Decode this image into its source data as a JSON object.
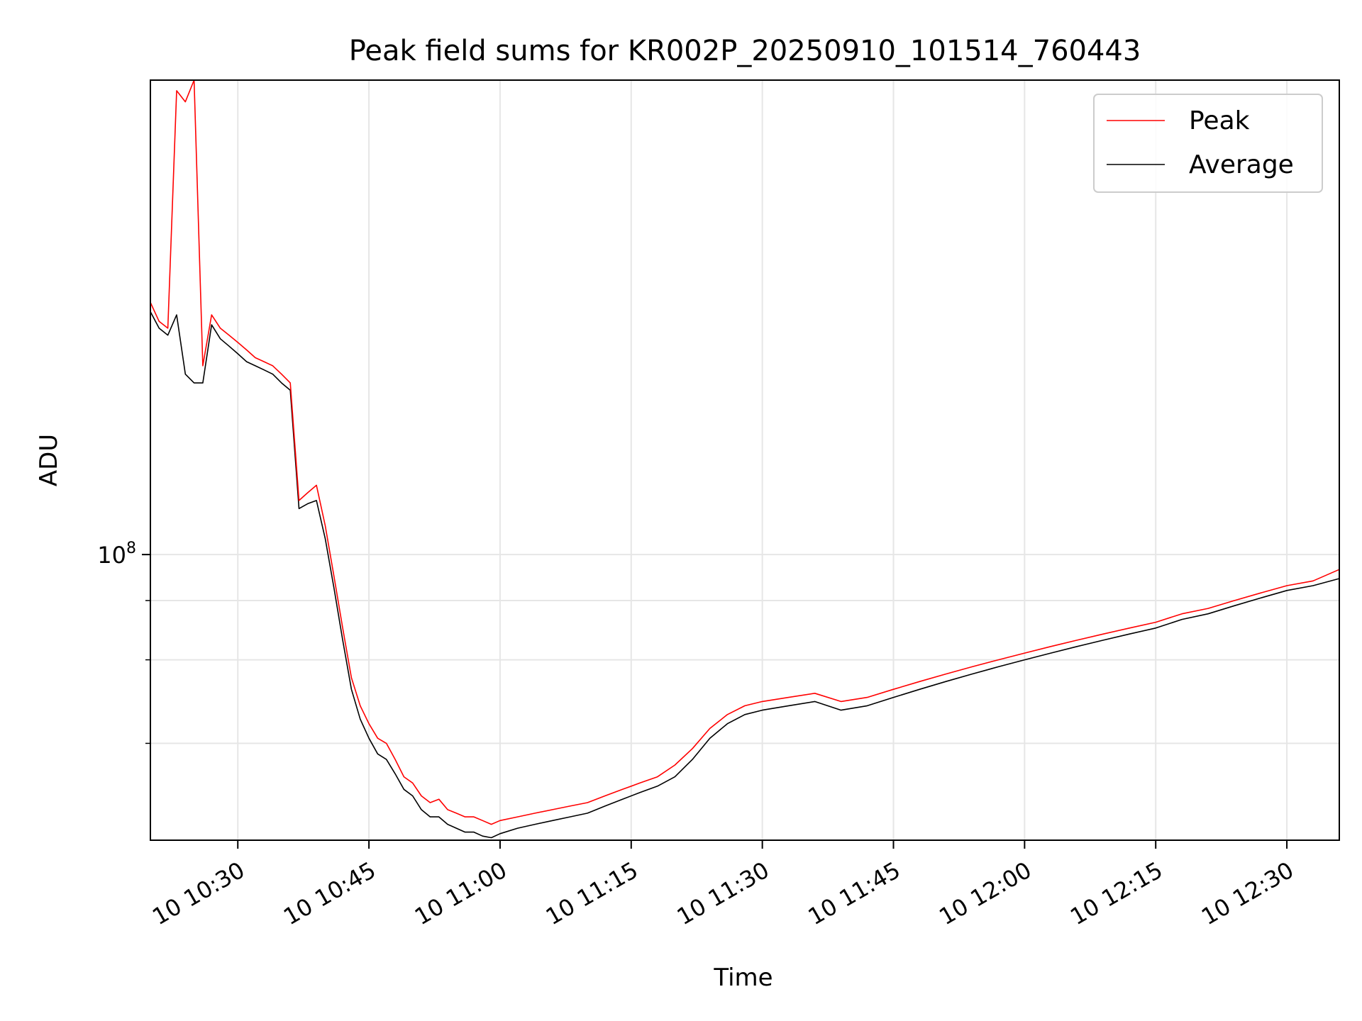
{
  "chart_data": {
    "type": "line",
    "title": "Peak field sums for KR002P_20250910_101514_760443",
    "xlabel": "Time",
    "ylabel": "ADU",
    "xlim": [
      "10:20:00",
      "12:36:00"
    ],
    "y_scale": "log",
    "ylim": [
      25000000,
      1000000000
    ],
    "grid": true,
    "legend": "upper right",
    "x_tick_labels": [
      "10 10:30",
      "10 10:45",
      "10 11:00",
      "10 11:15",
      "10 11:30",
      "10 11:45",
      "10 12:00",
      "10 12:15",
      "10 12:30"
    ],
    "x_ticks": [
      "10:30",
      "10:45",
      "11:00",
      "11:15",
      "11:30",
      "11:45",
      "12:00",
      "12:15",
      "12:30"
    ],
    "y_major_ticks": [
      {
        "value": 100000000,
        "base": "10",
        "exp": "8"
      }
    ],
    "y_minor_ticks": [
      40000000,
      60000000,
      80000000
    ],
    "x": [
      "10:20:00",
      "10:21:00",
      "10:22:00",
      "10:23:00",
      "10:24:00",
      "10:25:00",
      "10:26:00",
      "10:27:00",
      "10:28:00",
      "10:29:00",
      "10:30:00",
      "10:31:00",
      "10:32:00",
      "10:33:00",
      "10:34:00",
      "10:35:00",
      "10:36:00",
      "10:37:00",
      "10:38:00",
      "10:39:00",
      "10:40:00",
      "10:41:00",
      "10:42:00",
      "10:43:00",
      "10:44:00",
      "10:45:00",
      "10:46:00",
      "10:47:00",
      "10:48:00",
      "10:49:00",
      "10:50:00",
      "10:51:00",
      "10:52:00",
      "10:53:00",
      "10:54:00",
      "10:55:00",
      "10:56:00",
      "10:57:00",
      "10:58:00",
      "10:59:00",
      "11:00:00",
      "11:02:00",
      "11:04:00",
      "11:06:00",
      "11:08:00",
      "11:10:00",
      "11:12:00",
      "11:14:00",
      "11:16:00",
      "11:18:00",
      "11:20:00",
      "11:22:00",
      "11:24:00",
      "11:26:00",
      "11:28:00",
      "11:30:00",
      "11:33:00",
      "11:36:00",
      "11:39:00",
      "11:42:00",
      "11:45:00",
      "11:48:00",
      "11:51:00",
      "11:54:00",
      "11:57:00",
      "12:00:00",
      "12:03:00",
      "12:06:00",
      "12:09:00",
      "12:12:00",
      "12:15:00",
      "12:18:00",
      "12:21:00",
      "12:24:00",
      "12:27:00",
      "12:30:00",
      "12:33:00",
      "12:36:00"
    ],
    "series": [
      {
        "name": "Peak",
        "color": "#ff0000",
        "values": [
          340000000,
          310000000,
          300000000,
          950000000,
          900000000,
          1000000000,
          250000000,
          320000000,
          300000000,
          290000000,
          280000000,
          270000000,
          260000000,
          255000000,
          250000000,
          240000000,
          230000000,
          130000000,
          135000000,
          140000000,
          115000000,
          90000000,
          70000000,
          55000000,
          48000000,
          44000000,
          41000000,
          40000000,
          37000000,
          34000000,
          33000000,
          31000000,
          30000000,
          30500000,
          29000000,
          28500000,
          28000000,
          28000000,
          27500000,
          27000000,
          27500000,
          28000000,
          28500000,
          29000000,
          29500000,
          30000000,
          31000000,
          32000000,
          33000000,
          34000000,
          36000000,
          39000000,
          43000000,
          46000000,
          48000000,
          49000000,
          50000000,
          51000000,
          49000000,
          50000000,
          52000000,
          54000000,
          56000000,
          58000000,
          60000000,
          62000000,
          64000000,
          66000000,
          68000000,
          70000000,
          72000000,
          75000000,
          77000000,
          80000000,
          83000000,
          86000000,
          88000000,
          93000000
        ]
      },
      {
        "name": "Average",
        "color": "#000000",
        "values": [
          325000000,
          300000000,
          290000000,
          320000000,
          240000000,
          230000000,
          230000000,
          305000000,
          285000000,
          275000000,
          265000000,
          255000000,
          250000000,
          245000000,
          240000000,
          230000000,
          222000000,
          125000000,
          128000000,
          130000000,
          108000000,
          85000000,
          66000000,
          52000000,
          45000000,
          41000000,
          38000000,
          37000000,
          34500000,
          32000000,
          31000000,
          29000000,
          28000000,
          28000000,
          27000000,
          26500000,
          26000000,
          26000000,
          25500000,
          25300000,
          25800000,
          26500000,
          27000000,
          27500000,
          28000000,
          28500000,
          29500000,
          30500000,
          31500000,
          32500000,
          34000000,
          37000000,
          41000000,
          44000000,
          46000000,
          47000000,
          48000000,
          49000000,
          47000000,
          48000000,
          50000000,
          52000000,
          54000000,
          56000000,
          58000000,
          60000000,
          62000000,
          64000000,
          66000000,
          68000000,
          70000000,
          73000000,
          75000000,
          78000000,
          81000000,
          84000000,
          86000000,
          89000000
        ]
      }
    ]
  }
}
